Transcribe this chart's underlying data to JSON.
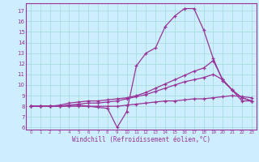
{
  "xlabel": "Windchill (Refroidissement éolien,°C)",
  "bg_color": "#cceeff",
  "grid_color": "#aadddd",
  "line_color": "#993399",
  "spine_color": "#993399",
  "xlim": [
    -0.5,
    23.5
  ],
  "ylim": [
    5.8,
    17.7
  ],
  "yticks": [
    6,
    7,
    8,
    9,
    10,
    11,
    12,
    13,
    14,
    15,
    16,
    17
  ],
  "xticks": [
    0,
    1,
    2,
    3,
    4,
    5,
    6,
    7,
    8,
    9,
    10,
    11,
    12,
    13,
    14,
    15,
    16,
    17,
    18,
    19,
    20,
    21,
    22,
    23
  ],
  "line1_y": [
    8.0,
    8.0,
    8.0,
    8.0,
    8.1,
    8.1,
    8.0,
    7.9,
    7.8,
    6.0,
    7.5,
    11.8,
    13.0,
    13.5,
    15.5,
    16.5,
    17.2,
    17.2,
    15.2,
    12.5,
    10.4,
    9.5,
    8.5,
    8.5
  ],
  "line2_y": [
    8.0,
    8.0,
    8.0,
    8.1,
    8.3,
    8.4,
    8.5,
    8.5,
    8.6,
    8.7,
    8.8,
    9.0,
    9.3,
    9.7,
    10.1,
    10.5,
    10.9,
    11.3,
    11.6,
    12.3,
    10.5,
    9.5,
    8.8,
    8.5
  ],
  "line3_y": [
    8.0,
    8.0,
    8.0,
    8.0,
    8.1,
    8.2,
    8.3,
    8.3,
    8.4,
    8.5,
    8.7,
    8.9,
    9.1,
    9.4,
    9.7,
    10.0,
    10.3,
    10.5,
    10.7,
    11.0,
    10.5,
    9.5,
    8.8,
    8.5
  ],
  "line4_y": [
    8.0,
    8.0,
    8.0,
    8.0,
    8.0,
    8.0,
    8.0,
    8.0,
    8.0,
    8.0,
    8.1,
    8.2,
    8.3,
    8.4,
    8.5,
    8.5,
    8.6,
    8.7,
    8.7,
    8.8,
    8.9,
    9.0,
    8.9,
    8.8
  ]
}
